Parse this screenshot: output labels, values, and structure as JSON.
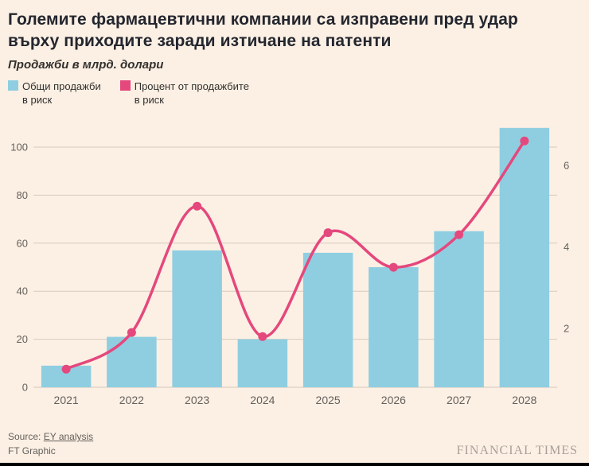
{
  "header": {
    "title": "Големите фармацевтични компании са изправени пред удар върху приходите заради изтичане на патенти",
    "subtitle": "Продажби в млрд. долари"
  },
  "legend": [
    {
      "line1": "Общи продажби",
      "line2": "в риск",
      "color": "#8FCEE1"
    },
    {
      "line1": "Процент от продажбите",
      "line2": "в риск",
      "color": "#E4487D"
    }
  ],
  "chart_data": {
    "type": "bar",
    "categories": [
      "2021",
      "2022",
      "2023",
      "2024",
      "2025",
      "2026",
      "2027",
      "2028"
    ],
    "series": [
      {
        "name": "Общи продажби в риск",
        "type": "bar",
        "axis": "left",
        "color": "#8FCEE1",
        "values": [
          9,
          21,
          57,
          20,
          56,
          50,
          65,
          108
        ]
      },
      {
        "name": "Процент от продажбите в риск",
        "type": "line",
        "axis": "right",
        "color": "#E4487D",
        "values": [
          1.0,
          1.9,
          5.0,
          1.8,
          4.35,
          3.5,
          4.3,
          6.6
        ]
      }
    ],
    "title": "Големите фармацевтични компании са изправени пред удар върху приходите заради изтичане на патенти",
    "subtitle": "Продажби в млрд. долари",
    "left_axis": {
      "ticks": [
        0,
        20,
        40,
        60,
        80,
        100
      ],
      "range": [
        0,
        110
      ]
    },
    "right_axis": {
      "ticks": [
        2,
        4,
        6
      ],
      "range": [
        0.5,
        7
      ]
    },
    "grid": "horizontal",
    "grid_color": "#D5C9BD",
    "legend_position": "top-left",
    "background": "#FCF0E4"
  },
  "footer": {
    "source_prefix": "Source: ",
    "source_link": "EY analysis",
    "credit": "FT Graphic",
    "brand": "FINANCIAL TIMES"
  }
}
